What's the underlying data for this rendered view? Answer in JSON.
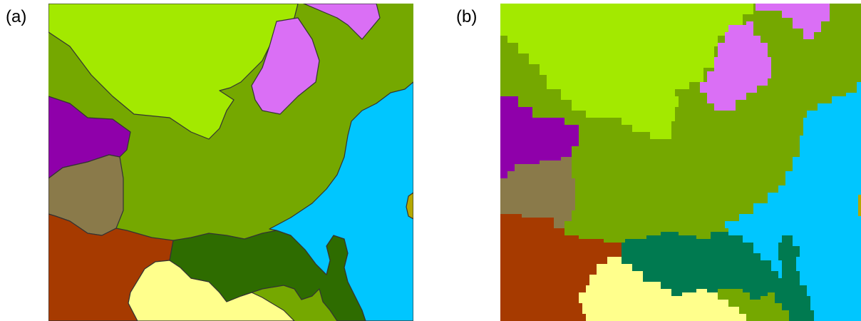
{
  "panels": [
    {
      "label": "(a)"
    },
    {
      "label": "(b)"
    }
  ],
  "colors": {
    "lime": "#a3e900",
    "olive_green": "#75a800",
    "violet": "#da6ff5",
    "purple": "#8f00aa",
    "brown_olive": "#8a7a4a",
    "rust": "#a63a00",
    "light_yellow": "#ffff8c",
    "dark_green": "#2e6c00",
    "teal_green": "#007a50",
    "sky_blue": "#00c6ff",
    "mustard": "#b5a800"
  }
}
